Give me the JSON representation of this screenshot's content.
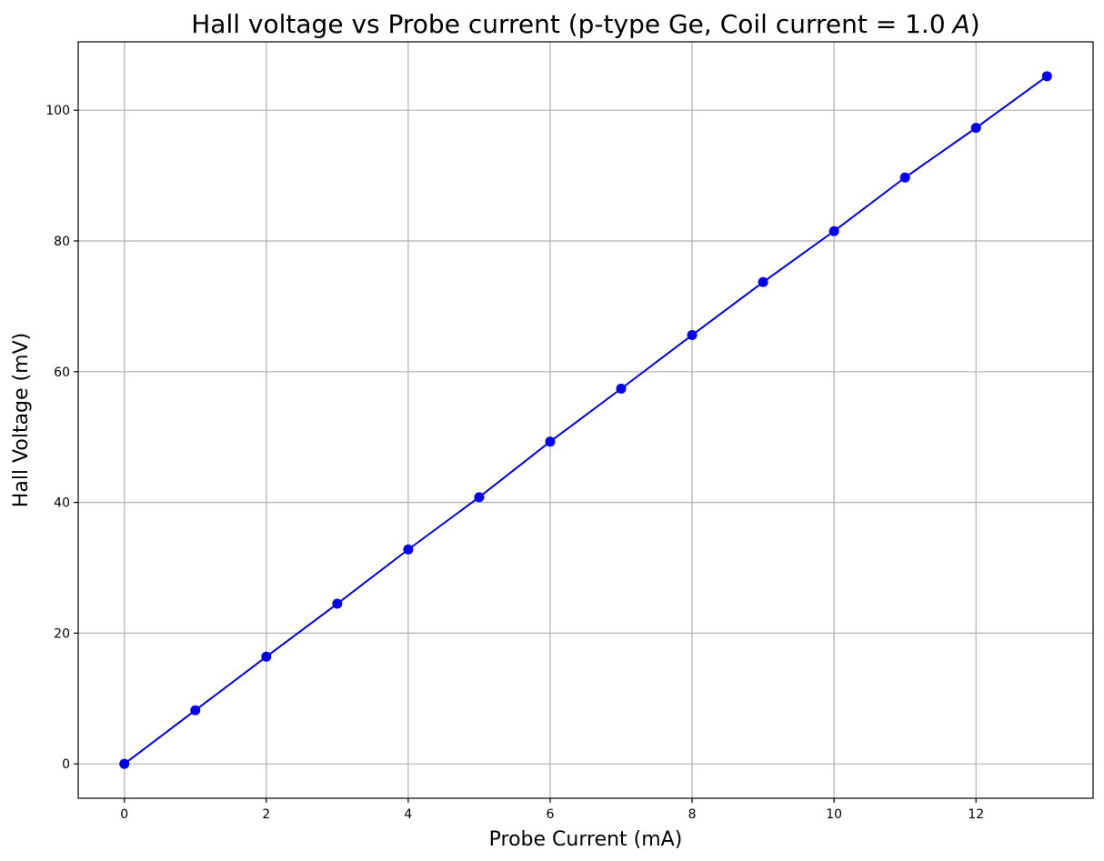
{
  "chart_data": {
    "type": "line",
    "title": "Hall voltage vs Probe current (p-type Ge, Coil current = 1.0",
    "title_symbol": "A",
    "title_end": ")",
    "xlabel": "Probe Current (mA)",
    "ylabel": "Hall Voltage (mV)",
    "x": [
      0,
      1,
      2,
      3,
      4,
      5,
      6,
      7,
      8,
      9,
      10,
      11,
      12,
      13
    ],
    "series": [
      {
        "values": [
          0,
          8.2,
          16.4,
          24.5,
          32.8,
          40.8,
          49.3,
          57.4,
          65.6,
          73.7,
          81.5,
          89.7,
          97.3,
          105.2
        ],
        "color": "#0000ee",
        "marker": "circle"
      }
    ],
    "xlim": [
      -0.65,
      13.65
    ],
    "ylim": [
      -5.26,
      110.46
    ],
    "xticks": [
      0,
      2,
      4,
      6,
      8,
      10,
      12
    ],
    "yticks": [
      0,
      20,
      40,
      60,
      80,
      100
    ],
    "xtick_labels": [
      "0",
      "2",
      "4",
      "6",
      "8",
      "10",
      "12"
    ],
    "ytick_labels": [
      "0",
      "20",
      "40",
      "60",
      "80",
      "100"
    ],
    "grid": true,
    "grid_color": "#b0b0b0",
    "legend": false
  }
}
